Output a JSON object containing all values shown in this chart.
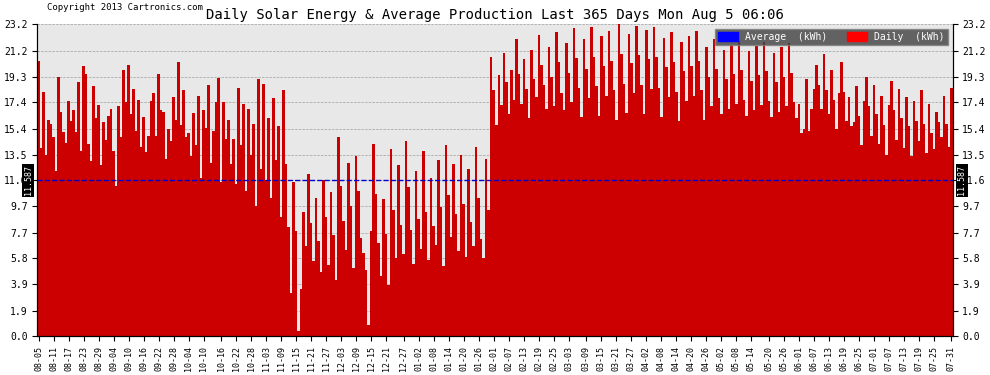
{
  "title": "Daily Solar Energy & Average Production Last 365 Days Mon Aug 5 06:06",
  "copyright": "Copyright 2013 Cartronics.com",
  "average_value": 11.587,
  "bar_color": "#cc0000",
  "average_line_color": "#0000cc",
  "background_color": "#ffffff",
  "plot_bg_color": "#e8e8e8",
  "yticks": [
    0.0,
    1.9,
    3.9,
    5.8,
    7.7,
    9.7,
    11.6,
    13.5,
    15.4,
    17.4,
    19.3,
    21.2,
    23.2
  ],
  "ylim": [
    0.0,
    23.2
  ],
  "legend_avg_label": "Average  (kWh)",
  "legend_daily_label": "Daily  (kWh)",
  "xtick_labels": [
    "08-05",
    "08-11",
    "08-17",
    "08-23",
    "08-29",
    "09-04",
    "09-10",
    "09-16",
    "09-22",
    "09-28",
    "10-04",
    "10-10",
    "10-16",
    "10-22",
    "10-28",
    "11-03",
    "11-09",
    "11-15",
    "11-21",
    "11-27",
    "12-03",
    "12-09",
    "12-15",
    "12-21",
    "12-27",
    "01-02",
    "01-08",
    "01-14",
    "01-20",
    "01-26",
    "02-01",
    "02-07",
    "02-13",
    "02-19",
    "02-25",
    "03-03",
    "03-09",
    "03-15",
    "03-21",
    "03-27",
    "04-02",
    "04-08",
    "04-14",
    "04-20",
    "04-26",
    "05-02",
    "05-08",
    "05-14",
    "05-20",
    "05-26",
    "06-01",
    "06-07",
    "06-13",
    "06-19",
    "06-25",
    "07-01",
    "07-07",
    "07-13",
    "07-19",
    "07-25",
    "07-31"
  ],
  "daily_values": [
    20.5,
    14.0,
    18.2,
    13.5,
    16.1,
    15.8,
    14.8,
    12.3,
    19.3,
    16.7,
    15.2,
    14.4,
    17.5,
    16.0,
    16.8,
    15.2,
    18.9,
    13.8,
    20.1,
    19.5,
    14.3,
    13.0,
    18.6,
    16.2,
    17.2,
    12.7,
    15.9,
    14.6,
    16.4,
    16.9,
    13.8,
    11.2,
    17.1,
    14.8,
    19.8,
    17.4,
    20.2,
    16.5,
    18.4,
    15.3,
    17.6,
    14.1,
    16.3,
    13.7,
    14.9,
    17.5,
    18.1,
    14.9,
    19.5,
    16.8,
    16.7,
    13.2,
    15.4,
    14.5,
    17.8,
    16.1,
    20.4,
    15.7,
    18.3,
    14.8,
    15.1,
    13.4,
    16.6,
    14.2,
    17.9,
    11.8,
    16.8,
    15.5,
    18.7,
    12.9,
    15.3,
    17.4,
    19.2,
    11.5,
    17.4,
    14.7,
    16.1,
    12.8,
    14.7,
    11.3,
    18.5,
    14.2,
    17.3,
    10.8,
    16.9,
    13.5,
    15.8,
    9.7,
    19.1,
    12.4,
    18.8,
    11.6,
    16.2,
    10.3,
    17.7,
    13.1,
    15.6,
    8.9,
    18.3,
    12.8,
    8.1,
    3.2,
    11.5,
    7.8,
    0.4,
    3.5,
    9.2,
    6.7,
    12.1,
    8.4,
    5.6,
    10.3,
    7.1,
    4.8,
    11.6,
    8.9,
    5.3,
    10.7,
    7.5,
    4.2,
    14.8,
    11.2,
    8.6,
    6.4,
    12.9,
    9.7,
    5.1,
    13.4,
    10.8,
    7.3,
    6.2,
    4.9,
    0.8,
    7.8,
    14.3,
    10.6,
    6.9,
    4.5,
    10.2,
    7.6,
    3.8,
    13.9,
    9.4,
    5.8,
    12.7,
    8.3,
    6.1,
    14.5,
    11.1,
    7.9,
    5.4,
    12.3,
    8.7,
    6.5,
    13.8,
    9.2,
    5.7,
    11.8,
    8.2,
    6.8,
    13.1,
    9.6,
    5.2,
    14.2,
    10.5,
    7.4,
    12.8,
    9.1,
    6.3,
    13.5,
    9.8,
    5.9,
    12.4,
    8.5,
    6.7,
    14.1,
    10.3,
    7.2,
    5.8,
    13.2,
    9.4,
    20.8,
    18.3,
    15.7,
    19.4,
    17.2,
    21.1,
    18.9,
    16.5,
    19.8,
    17.6,
    22.1,
    19.5,
    17.3,
    20.6,
    18.4,
    16.2,
    21.3,
    19.1,
    17.8,
    22.4,
    20.2,
    18.7,
    16.9,
    21.5,
    19.3,
    17.1,
    22.6,
    20.4,
    18.1,
    16.8,
    21.8,
    19.6,
    17.4,
    22.9,
    20.7,
    18.5,
    16.3,
    22.1,
    19.9,
    17.7,
    23.0,
    20.8,
    18.6,
    16.4,
    22.3,
    20.1,
    17.9,
    22.7,
    20.5,
    18.3,
    16.1,
    23.2,
    21.0,
    18.8,
    16.6,
    22.5,
    20.3,
    18.1,
    23.1,
    20.9,
    18.7,
    16.5,
    22.8,
    20.6,
    18.4,
    23.0,
    20.8,
    18.5,
    16.3,
    22.2,
    20.0,
    17.8,
    22.6,
    20.4,
    18.2,
    16.0,
    21.9,
    19.7,
    17.5,
    22.3,
    20.1,
    17.9,
    22.7,
    20.5,
    18.3,
    16.1,
    21.5,
    19.3,
    17.1,
    22.1,
    19.9,
    17.7,
    16.5,
    21.3,
    19.1,
    16.9,
    21.7,
    19.5,
    17.3,
    22.0,
    19.8,
    17.6,
    16.4,
    21.2,
    19.0,
    16.8,
    21.6,
    19.4,
    17.2,
    21.9,
    19.7,
    17.5,
    16.3,
    21.1,
    18.9,
    16.7,
    21.5,
    19.3,
    17.1,
    21.8,
    19.6,
    17.4,
    16.2,
    17.3,
    15.1,
    15.4,
    19.1,
    15.3,
    16.9,
    18.4,
    20.2,
    18.7,
    16.9,
    21.0,
    18.3,
    16.5,
    19.8,
    17.6,
    15.4,
    18.1,
    20.4,
    18.2,
    16.0,
    17.8,
    15.6,
    15.9,
    18.6,
    16.4,
    14.2,
    17.5,
    19.3,
    17.1,
    14.9,
    18.7,
    16.5,
    14.3,
    17.9,
    15.7,
    13.5,
    17.2,
    19.0,
    16.8,
    14.6,
    18.4,
    16.2,
    14.0,
    17.8,
    15.6,
    13.4,
    17.5,
    16.0,
    14.5,
    18.3,
    15.8,
    13.6,
    17.3,
    15.1,
    13.9,
    16.7,
    15.9,
    14.8,
    17.9,
    15.8,
    14.1,
    18.5
  ]
}
